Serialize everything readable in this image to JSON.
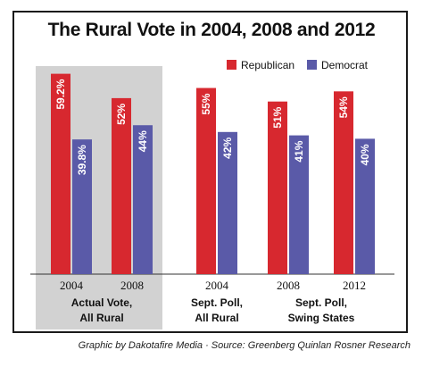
{
  "chart_data": {
    "type": "bar",
    "title": "The Rural Vote in 2004, 2008 and 2012",
    "legend_position": "top-right",
    "series": [
      {
        "name": "Republican",
        "color": "#d7282f",
        "values": [
          59.2,
          52,
          55,
          51,
          54
        ],
        "labels": [
          "59.2%",
          "52%",
          "55%",
          "51%",
          "54%"
        ]
      },
      {
        "name": "Democrat",
        "color": "#5a5aa8",
        "values": [
          39.8,
          44,
          42,
          41,
          40
        ],
        "labels": [
          "39.8%",
          "44%",
          "42%",
          "41%",
          "40%"
        ]
      }
    ],
    "categories": [
      "2004",
      "2008",
      "2004",
      "2008",
      "2012"
    ],
    "category_groups": [
      {
        "lines": [
          "Actual Vote,",
          "All Rural"
        ],
        "shaded": true
      },
      {
        "lines": [
          "Sept. Poll,",
          "All Rural"
        ],
        "shaded": false
      },
      {
        "lines": [
          "Sept. Poll,",
          "Swing States"
        ],
        "shaded": false
      }
    ],
    "ylim": [
      0,
      62
    ]
  },
  "colors": {
    "shade": "#d2d2d2",
    "frame": "#1a1a1a"
  },
  "credit": "Graphic by Dakotafire Media · Source: Greenberg Quinlan Rosner Research"
}
